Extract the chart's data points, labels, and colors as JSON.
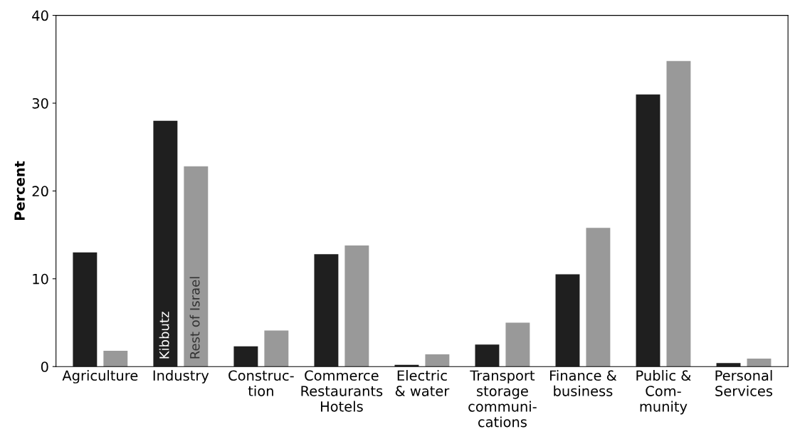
{
  "chart_data": {
    "type": "bar",
    "ylabel": "Percent",
    "categories": [
      "Agriculture",
      "Industry",
      "Construc-\ntion",
      "Commerce\nRestaurants\nHotels",
      "Electric\n& water",
      "Transport\nstorage\ncommuni-\ncations",
      "Finance &\nbusiness",
      "Public &\nCom-\nmunity",
      "Personal\nServices"
    ],
    "series": [
      {
        "name": "Kibbutz",
        "color": "#1f1f1f",
        "values": [
          13.0,
          28.0,
          2.3,
          12.8,
          0.2,
          2.5,
          10.5,
          31.0,
          0.4
        ]
      },
      {
        "name": "Rest of Israel",
        "color": "#999999",
        "values": [
          1.8,
          22.8,
          4.1,
          13.8,
          1.4,
          5.0,
          15.8,
          34.8,
          0.9
        ]
      }
    ],
    "ylim": [
      0,
      40
    ],
    "yticks": [
      0,
      10,
      20,
      30,
      40
    ],
    "grid": false,
    "legend": false
  }
}
